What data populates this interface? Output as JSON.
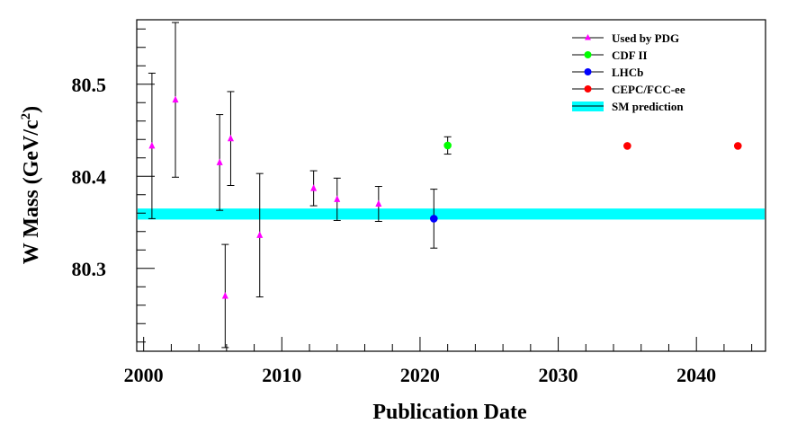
{
  "chart_data": {
    "type": "scatter",
    "title": "",
    "xlabel": "Publication Date",
    "ylabel_main": "W Mass (GeV/c",
    "ylabel_sup": "2",
    "ylabel_tail": ")",
    "xlim": [
      1999.5,
      2045
    ],
    "ylim": [
      80.21,
      80.57
    ],
    "x_ticks": [
      2000,
      2010,
      2020,
      2030,
      2040
    ],
    "x_tick_labels": [
      "2000",
      "2010",
      "2020",
      "2030",
      "2040"
    ],
    "y_ticks": [
      80.3,
      80.4,
      80.5
    ],
    "y_tick_labels": [
      "80.3",
      "80.4",
      "80.5"
    ],
    "legend_position": "top-right",
    "band": {
      "name": "SM prediction",
      "y_low": 80.353,
      "y_high": 80.365,
      "color": "#00ffff"
    },
    "series": [
      {
        "name": "Used by PDG",
        "marker": "triangle",
        "color": "#ff00ff",
        "points": [
          {
            "x": 2000.6,
            "y": 80.433,
            "err_low": 0.079,
            "err_high": 0.079
          },
          {
            "x": 2002.3,
            "y": 80.483,
            "err_low": 0.084,
            "err_high": 0.084
          },
          {
            "x": 2005.5,
            "y": 80.415,
            "err_low": 0.052,
            "err_high": 0.052
          },
          {
            "x": 2005.9,
            "y": 80.27,
            "err_low": 0.056,
            "err_high": 0.056
          },
          {
            "x": 2006.3,
            "y": 80.441,
            "err_low": 0.051,
            "err_high": 0.051
          },
          {
            "x": 2008.4,
            "y": 80.336,
            "err_low": 0.067,
            "err_high": 0.067
          },
          {
            "x": 2012.3,
            "y": 80.387,
            "err_low": 0.019,
            "err_high": 0.019
          },
          {
            "x": 2014.0,
            "y": 80.375,
            "err_low": 0.023,
            "err_high": 0.023
          },
          {
            "x": 2017.0,
            "y": 80.37,
            "err_low": 0.019,
            "err_high": 0.019
          }
        ]
      },
      {
        "name": "CDF II",
        "marker": "circle",
        "color": "#00ff00",
        "points": [
          {
            "x": 2022.0,
            "y": 80.4335,
            "err_low": 0.0094,
            "err_high": 0.0094
          }
        ]
      },
      {
        "name": "LHCb",
        "marker": "circle",
        "color": "#0000ff",
        "points": [
          {
            "x": 2021.0,
            "y": 80.354,
            "err_low": 0.032,
            "err_high": 0.032
          }
        ]
      },
      {
        "name": "CEPC/FCC-ee",
        "marker": "circle",
        "color": "#ff0000",
        "points": [
          {
            "x": 2035.0,
            "y": 80.433,
            "err_low": 0.0005,
            "err_high": 0.0005
          },
          {
            "x": 2043.0,
            "y": 80.433,
            "err_low": 0.0005,
            "err_high": 0.0005
          }
        ]
      }
    ],
    "legend": [
      {
        "label": "Used by PDG",
        "marker": "triangle",
        "color": "#ff00ff"
      },
      {
        "label": "CDF II",
        "marker": "circle",
        "color": "#00ff00"
      },
      {
        "label": "LHCb",
        "marker": "circle",
        "color": "#0000ff"
      },
      {
        "label": "CEPC/FCC-ee",
        "marker": "circle",
        "color": "#ff0000"
      },
      {
        "label": "SM prediction",
        "marker": "band",
        "color": "#00ffff"
      }
    ]
  }
}
